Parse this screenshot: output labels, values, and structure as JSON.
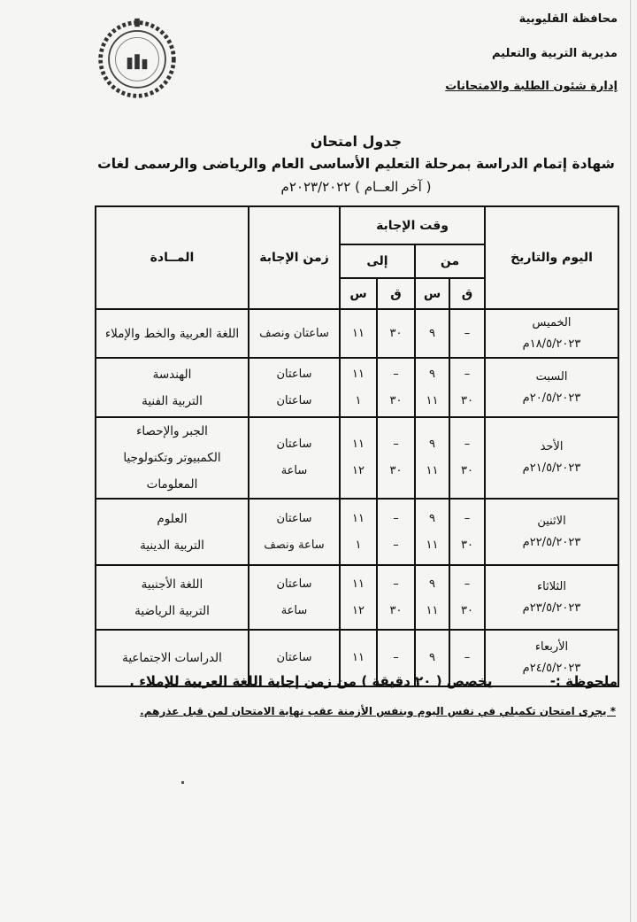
{
  "header": {
    "governorate": "محافظة القليوبية",
    "directorate": "مديرية التربية والتعليم",
    "department": "إدارة شئون الطلبة والامتحانات"
  },
  "title": {
    "line1": "جدول امتحان",
    "line2": "شهادة إتمام الدراسة بمرحلة التعليم الأساسى العام والرياضى والرسمى لغات",
    "line3": "( آخر العــام ) ٢٠٢٣/٢٠٢٢م"
  },
  "table": {
    "headers": {
      "day_date": "اليوم والتاريخ",
      "answer_time": "وقت الإجابة",
      "from": "من",
      "to": "إلى",
      "minute": "ق",
      "hour": "س",
      "duration": "زمن الإجابة",
      "subject": "المــادة"
    },
    "rows": [
      {
        "day": "الخميس",
        "date": "١٨/٥/٢٠٢٣م",
        "exams": [
          {
            "from_m": "–",
            "from_h": "٩",
            "to_m": "٣٠",
            "to_h": "١١",
            "duration": "ساعتان ونصف",
            "subject": "اللغة العربية والخط والإملاء"
          }
        ]
      },
      {
        "day": "السبت",
        "date": "٢٠/٥/٢٠٢٣م",
        "exams": [
          {
            "from_m": "–",
            "from_h": "٩",
            "to_m": "–",
            "to_h": "١١",
            "duration": "ساعتان",
            "subject": "الهندسة"
          },
          {
            "from_m": "٣٠",
            "from_h": "١١",
            "to_m": "٣٠",
            "to_h": "١",
            "duration": "ساعتان",
            "subject": "التربية الفنية"
          }
        ]
      },
      {
        "day": "الأحد",
        "date": "٢١/٥/٢٠٢٣م",
        "exams": [
          {
            "from_m": "–",
            "from_h": "٩",
            "to_m": "–",
            "to_h": "١١",
            "duration": "ساعتان",
            "subject": "الجبر والإحصاء"
          },
          {
            "from_m": "٣٠",
            "from_h": "١١",
            "to_m": "٣٠",
            "to_h": "١٢",
            "duration": "ساعة",
            "subject": "الكمبيوتر وتكنولوجيا المعلومات"
          }
        ]
      },
      {
        "day": "الاثنين",
        "date": "٢٢/٥/٢٠٢٣م",
        "exams": [
          {
            "from_m": "–",
            "from_h": "٩",
            "to_m": "–",
            "to_h": "١١",
            "duration": "ساعتان",
            "subject": "العلوم"
          },
          {
            "from_m": "٣٠",
            "from_h": "١١",
            "to_m": "–",
            "to_h": "١",
            "duration": "ساعة ونصف",
            "subject": "التربية الدينية"
          }
        ]
      },
      {
        "day": "الثلاثاء",
        "date": "٢٣/٥/٢٠٢٣م",
        "exams": [
          {
            "from_m": "–",
            "from_h": "٩",
            "to_m": "–",
            "to_h": "١١",
            "duration": "ساعتان",
            "subject": "اللغة الأجنبية"
          },
          {
            "from_m": "٣٠",
            "from_h": "١١",
            "to_m": "٣٠",
            "to_h": "١٢",
            "duration": "ساعة",
            "subject": "التربية الرياضية"
          }
        ]
      },
      {
        "day": "الأربعاء",
        "date": "٢٤/٥/٢٠٢٣م",
        "exams": [
          {
            "from_m": "–",
            "from_h": "٩",
            "to_m": "–",
            "to_h": "١١",
            "duration": "ساعتان",
            "subject": "الدراسات الاجتماعية"
          }
        ]
      }
    ]
  },
  "notes": {
    "label": "ملحوظة :-",
    "note1": "يخصص ( ٢٠ دقيقة ) من زمن إجابة اللغة العربية للإملاء .",
    "note2": "* يجرى امتحان تكميلي في نفس اليوم وبنفس الأزمنة عقب نهاية الامتحان لمن قبل عذرهم."
  }
}
